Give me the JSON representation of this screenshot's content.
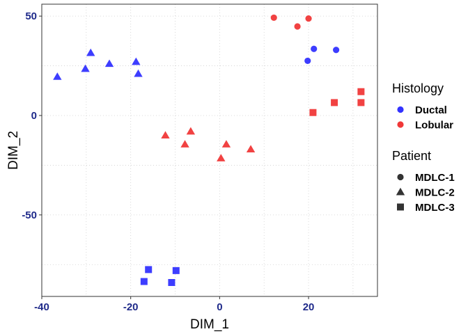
{
  "chart_data": {
    "type": "scatter",
    "xlabel": "DIM_1",
    "ylabel": "DIM_2",
    "xlim": [
      -40,
      35.5
    ],
    "ylim": [
      -91,
      56
    ],
    "xticks": [
      -40,
      -20,
      0,
      20
    ],
    "xtick_labels": [
      "-40",
      "-20",
      "0",
      "20"
    ],
    "yticks": [
      -50,
      0,
      50
    ],
    "ytick_labels": [
      "-50",
      "0",
      "50"
    ],
    "grid": true,
    "grid_style": "dotted",
    "legend_position": "right",
    "colors": {
      "Ductal": "#3333ff",
      "Lobular": "#f03838",
      "tick_text": "#1f2a8a"
    },
    "shapes": {
      "MDLC-1": "circle",
      "MDLC-2": "triangle",
      "MDLC-3": "square"
    },
    "legends": [
      {
        "title": "Histology",
        "items": [
          {
            "label": "Ductal",
            "symbol": "circle",
            "color": "#3333ff"
          },
          {
            "label": "Lobular",
            "symbol": "circle",
            "color": "#f03838"
          }
        ]
      },
      {
        "title": "Patient",
        "items": [
          {
            "label": "MDLC-1",
            "symbol": "circle",
            "color": "#333333"
          },
          {
            "label": "MDLC-2",
            "symbol": "triangle",
            "color": "#333333"
          },
          {
            "label": "MDLC-3",
            "symbol": "square",
            "color": "#333333"
          }
        ]
      }
    ],
    "points": [
      {
        "x": 12.2,
        "y": 49.2,
        "histology": "Lobular",
        "patient": "MDLC-1"
      },
      {
        "x": 17.5,
        "y": 44.8,
        "histology": "Lobular",
        "patient": "MDLC-1"
      },
      {
        "x": 20.0,
        "y": 48.8,
        "histology": "Lobular",
        "patient": "MDLC-1"
      },
      {
        "x": 21.2,
        "y": 33.5,
        "histology": "Ductal",
        "patient": "MDLC-1"
      },
      {
        "x": 26.2,
        "y": 33.0,
        "histology": "Ductal",
        "patient": "MDLC-1"
      },
      {
        "x": 19.8,
        "y": 27.5,
        "histology": "Ductal",
        "patient": "MDLC-1"
      },
      {
        "x": -36.5,
        "y": 19.5,
        "histology": "Ductal",
        "patient": "MDLC-2"
      },
      {
        "x": -29.0,
        "y": 31.5,
        "histology": "Ductal",
        "patient": "MDLC-2"
      },
      {
        "x": -30.2,
        "y": 23.5,
        "histology": "Ductal",
        "patient": "MDLC-2"
      },
      {
        "x": -24.8,
        "y": 26.0,
        "histology": "Ductal",
        "patient": "MDLC-2"
      },
      {
        "x": -18.8,
        "y": 27.0,
        "histology": "Ductal",
        "patient": "MDLC-2"
      },
      {
        "x": -18.3,
        "y": 21.0,
        "histology": "Ductal",
        "patient": "MDLC-2"
      },
      {
        "x": -12.2,
        "y": -10.0,
        "histology": "Lobular",
        "patient": "MDLC-2"
      },
      {
        "x": -6.5,
        "y": -8.0,
        "histology": "Lobular",
        "patient": "MDLC-2"
      },
      {
        "x": -7.8,
        "y": -14.5,
        "histology": "Lobular",
        "patient": "MDLC-2"
      },
      {
        "x": 1.5,
        "y": -14.5,
        "histology": "Lobular",
        "patient": "MDLC-2"
      },
      {
        "x": 0.3,
        "y": -21.5,
        "histology": "Lobular",
        "patient": "MDLC-2"
      },
      {
        "x": 7.0,
        "y": -17.0,
        "histology": "Lobular",
        "patient": "MDLC-2"
      },
      {
        "x": 21.0,
        "y": 1.5,
        "histology": "Lobular",
        "patient": "MDLC-3"
      },
      {
        "x": 25.8,
        "y": 6.5,
        "histology": "Lobular",
        "patient": "MDLC-3"
      },
      {
        "x": 31.8,
        "y": 12.0,
        "histology": "Lobular",
        "patient": "MDLC-3"
      },
      {
        "x": 31.8,
        "y": 6.5,
        "histology": "Lobular",
        "patient": "MDLC-3"
      },
      {
        "x": -16.0,
        "y": -77.5,
        "histology": "Ductal",
        "patient": "MDLC-3"
      },
      {
        "x": -9.8,
        "y": -78.0,
        "histology": "Ductal",
        "patient": "MDLC-3"
      },
      {
        "x": -17.0,
        "y": -83.5,
        "histology": "Ductal",
        "patient": "MDLC-3"
      },
      {
        "x": -10.8,
        "y": -84.0,
        "histology": "Ductal",
        "patient": "MDLC-3"
      }
    ]
  }
}
